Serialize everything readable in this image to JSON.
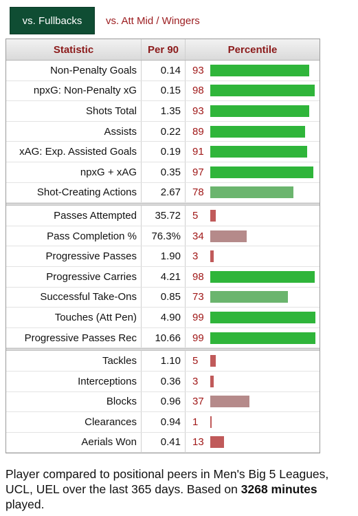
{
  "tabs": {
    "active": "vs. Fullbacks",
    "other": "vs. Att Mid / Wingers"
  },
  "columns": {
    "statistic": "Statistic",
    "per90": "Per 90",
    "percentile": "Percentile"
  },
  "colors": {
    "high": "#2fb53a",
    "mid": "#6bb56e",
    "low": "#b58a8a",
    "very_low": "#c05a5a"
  },
  "groups": [
    [
      {
        "stat": "Non-Penalty Goals",
        "per90": "0.14",
        "pct": "93",
        "pct_value": 93,
        "tier": "high"
      },
      {
        "stat": "npxG: Non-Penalty xG",
        "per90": "0.15",
        "pct": "98",
        "pct_value": 98,
        "tier": "high"
      },
      {
        "stat": "Shots Total",
        "per90": "1.35",
        "pct": "93",
        "pct_value": 93,
        "tier": "high"
      },
      {
        "stat": "Assists",
        "per90": "0.22",
        "pct": "89",
        "pct_value": 89,
        "tier": "high"
      },
      {
        "stat": "xAG: Exp. Assisted Goals",
        "per90": "0.19",
        "pct": "91",
        "pct_value": 91,
        "tier": "high"
      },
      {
        "stat": "npxG + xAG",
        "per90": "0.35",
        "pct": "97",
        "pct_value": 97,
        "tier": "high"
      },
      {
        "stat": "Shot-Creating Actions",
        "per90": "2.67",
        "pct": "78",
        "pct_value": 78,
        "tier": "mid"
      }
    ],
    [
      {
        "stat": "Passes Attempted",
        "per90": "35.72",
        "pct": "5",
        "pct_value": 5,
        "tier": "very_low"
      },
      {
        "stat": "Pass Completion %",
        "per90": "76.3%",
        "pct": "34",
        "pct_value": 34,
        "tier": "low"
      },
      {
        "stat": "Progressive Passes",
        "per90": "1.90",
        "pct": "3",
        "pct_value": 3,
        "tier": "very_low"
      },
      {
        "stat": "Progressive Carries",
        "per90": "4.21",
        "pct": "98",
        "pct_value": 98,
        "tier": "high"
      },
      {
        "stat": "Successful Take-Ons",
        "per90": "0.85",
        "pct": "73",
        "pct_value": 73,
        "tier": "mid"
      },
      {
        "stat": "Touches (Att Pen)",
        "per90": "4.90",
        "pct": "99",
        "pct_value": 99,
        "tier": "high"
      },
      {
        "stat": "Progressive Passes Rec",
        "per90": "10.66",
        "pct": "99",
        "pct_value": 99,
        "tier": "high"
      }
    ],
    [
      {
        "stat": "Tackles",
        "per90": "1.10",
        "pct": "5",
        "pct_value": 5,
        "tier": "very_low"
      },
      {
        "stat": "Interceptions",
        "per90": "0.36",
        "pct": "3",
        "pct_value": 3,
        "tier": "very_low"
      },
      {
        "stat": "Blocks",
        "per90": "0.96",
        "pct": "37",
        "pct_value": 37,
        "tier": "low"
      },
      {
        "stat": "Clearances",
        "per90": "0.94",
        "pct": "1",
        "pct_value": 1,
        "tier": "very_low"
      },
      {
        "stat": "Aerials Won",
        "per90": "0.41",
        "pct": "13",
        "pct_value": 13,
        "tier": "very_low"
      }
    ]
  ],
  "footer": {
    "text_before": "Player compared to positional peers in Men's Big 5 Leagues, UCL, UEL over the last 365 days. Based on ",
    "minutes": "3268 minutes",
    "text_after": " played."
  }
}
